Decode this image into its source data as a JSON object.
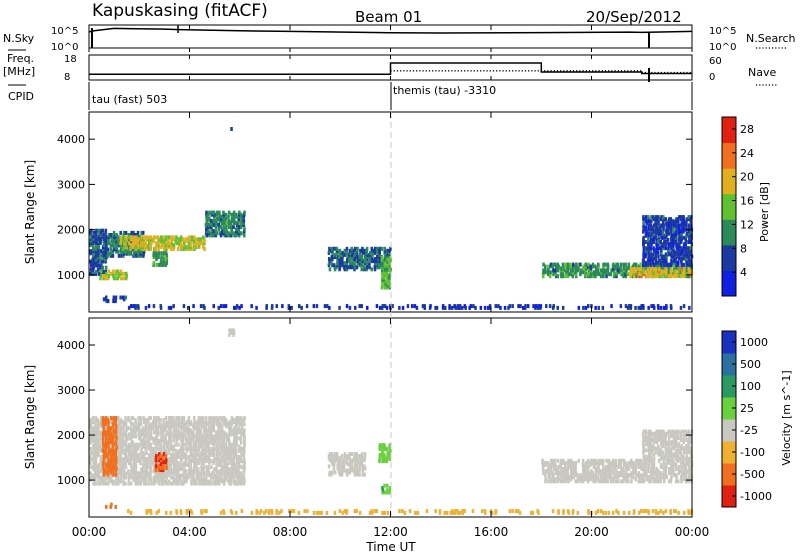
{
  "header": {
    "station": "Kapuskasing (fitACF)",
    "beam": "Beam 01",
    "date": "20/Sep/2012"
  },
  "top_panels": {
    "nsky_label": "N.Sky",
    "nsky_ticks": [
      "10^5",
      "10^0"
    ],
    "nsearch_label": "N.Search",
    "nsearch_ticks": [
      "10^5",
      "10^0"
    ],
    "freq_label": "Freq.",
    "freq_unit": "[MHz]",
    "freq_ticks": [
      "18",
      "8"
    ],
    "nave_label": "Nave",
    "nave_ticks": [
      "60",
      "0"
    ],
    "cpid_label": "CPID",
    "cpid_entries": [
      "tau (fast) 503",
      "themis (tau) -3310"
    ]
  },
  "time_axis": {
    "label": "Time UT",
    "ticks": [
      "00:00",
      "04:00",
      "08:00",
      "12:00",
      "16:00",
      "20:00",
      "00:00"
    ]
  },
  "power_panel": {
    "ylabel": "Slant Range [km]",
    "yticks": [
      "4000",
      "3000",
      "2000",
      "1000"
    ],
    "colorbar_label": "Power [dB]",
    "colorbar_ticks": [
      "28",
      "24",
      "20",
      "16",
      "12",
      "8",
      "4"
    ],
    "colors": [
      "#1020e0",
      "#1a3aa0",
      "#2a8a5a",
      "#60c030",
      "#e0b020",
      "#f07020",
      "#e02010"
    ]
  },
  "velocity_panel": {
    "ylabel": "Slant Range [km]",
    "yticks": [
      "4000",
      "3000",
      "2000",
      "1000"
    ],
    "colorbar_label": "Velocity [m s^-1]",
    "colorbar_ticks": [
      "1000",
      "500",
      "100",
      "25",
      "-25",
      "-100",
      "-500",
      "-1000"
    ],
    "colors": [
      "#1a30c0",
      "#2a70a0",
      "#2a9a60",
      "#6ad040",
      "#c8c8c0",
      "#f0b030",
      "#f07020",
      "#e02010"
    ]
  },
  "chart_data": [
    {
      "type": "line",
      "title": "N.Sky / N.Search",
      "x_range_hours": [
        0,
        24
      ],
      "series": [
        {
          "name": "N.Sky",
          "x": [
            0,
            0.2,
            1,
            3,
            3.6,
            6,
            8,
            12,
            14,
            18,
            21.5,
            22,
            23,
            24
          ],
          "values": [
            0.7,
            0.75,
            0.85,
            0.82,
            0.8,
            0.75,
            0.72,
            0.66,
            0.65,
            0.67,
            0.69,
            0.68,
            0.7,
            0.72
          ]
        }
      ]
    },
    {
      "type": "line",
      "title": "Freq. / Nave",
      "x_range_hours": [
        0,
        24
      ],
      "series": [
        {
          "name": "Freq.",
          "x": [
            0,
            12,
            12,
            18,
            18,
            22,
            22,
            24
          ],
          "values": [
            10.3,
            10.3,
            14.8,
            14.8,
            11.2,
            11.2,
            10.6,
            10.6
          ]
        },
        {
          "name": "Nave",
          "x": [
            12,
            22,
            22,
            24
          ],
          "values": [
            22,
            22,
            18,
            18
          ]
        }
      ]
    },
    {
      "type": "heatmap",
      "title": "Power [dB]",
      "ylabel": "Slant Range [km]",
      "xlabel": "Time UT",
      "x_range_hours": [
        0,
        24
      ],
      "ylim": [
        180,
        4600
      ],
      "scale_range": [
        0,
        30
      ],
      "regions": [
        {
          "t0": 0.0,
          "t1": 0.7,
          "r0": 1000,
          "r1": 2000,
          "value": 7
        },
        {
          "t0": 0.7,
          "t1": 2.2,
          "r0": 1400,
          "r1": 1950,
          "value": 10
        },
        {
          "t0": 1.2,
          "t1": 4.6,
          "r0": 1550,
          "r1": 1850,
          "value": 18
        },
        {
          "t0": 2.5,
          "t1": 3.1,
          "r0": 1200,
          "r1": 1500,
          "value": 12
        },
        {
          "t0": 4.6,
          "t1": 6.2,
          "r0": 1850,
          "r1": 2400,
          "value": 10
        },
        {
          "t0": 0.4,
          "t1": 1.5,
          "r0": 900,
          "r1": 1100,
          "value": 16
        },
        {
          "t0": 9.5,
          "t1": 12.0,
          "r0": 1100,
          "r1": 1600,
          "value": 8
        },
        {
          "t0": 11.6,
          "t1": 12.0,
          "r0": 700,
          "r1": 1400,
          "value": 14
        },
        {
          "t0": 5.5,
          "t1": 5.8,
          "r0": 4200,
          "r1": 4300,
          "value": 6
        },
        {
          "t0": 18.0,
          "t1": 24.0,
          "r0": 950,
          "r1": 1250,
          "value": 11
        },
        {
          "t0": 21.5,
          "t1": 24.0,
          "r0": 950,
          "r1": 1150,
          "value": 19
        },
        {
          "t0": 22.0,
          "t1": 24.0,
          "r0": 1200,
          "r1": 2300,
          "value": 6
        },
        {
          "t0": 0.5,
          "t1": 1.5,
          "r0": 400,
          "r1": 520,
          "value": 6
        },
        {
          "t0": 1.5,
          "t1": 24.0,
          "r0": 250,
          "r1": 330,
          "value": 5
        }
      ]
    },
    {
      "type": "heatmap",
      "title": "Velocity [m s^-1]",
      "ylabel": "Slant Range [km]",
      "xlabel": "Time UT",
      "x_range_hours": [
        0,
        24
      ],
      "ylim": [
        180,
        4600
      ],
      "regions": [
        {
          "t0": 0.0,
          "t1": 6.2,
          "r0": 900,
          "r1": 2400,
          "value": 0
        },
        {
          "t0": 2.6,
          "t1": 3.1,
          "r0": 1200,
          "r1": 1600,
          "value": -300
        },
        {
          "t0": 0.5,
          "t1": 1.1,
          "r0": 1100,
          "r1": 2400,
          "value": -80
        },
        {
          "t0": 11.6,
          "t1": 12.0,
          "r0": 700,
          "r1": 900,
          "value": 60
        },
        {
          "t0": 11.5,
          "t1": 12.0,
          "r0": 1400,
          "r1": 1800,
          "value": 40
        },
        {
          "t0": 9.5,
          "t1": 11.0,
          "r0": 1100,
          "r1": 1600,
          "value": 0
        },
        {
          "t0": 5.5,
          "t1": 5.8,
          "r0": 4200,
          "r1": 4350,
          "value": 0
        },
        {
          "t0": 18.0,
          "t1": 24.0,
          "r0": 950,
          "r1": 1450,
          "value": 0
        },
        {
          "t0": 22.0,
          "t1": 24.0,
          "r0": 1450,
          "r1": 2100,
          "value": 0
        },
        {
          "t0": 0.6,
          "t1": 1.5,
          "r0": 380,
          "r1": 480,
          "value": -100
        },
        {
          "t0": 1.5,
          "t1": 24.0,
          "r0": 250,
          "r1": 330,
          "value": -30
        }
      ]
    }
  ]
}
